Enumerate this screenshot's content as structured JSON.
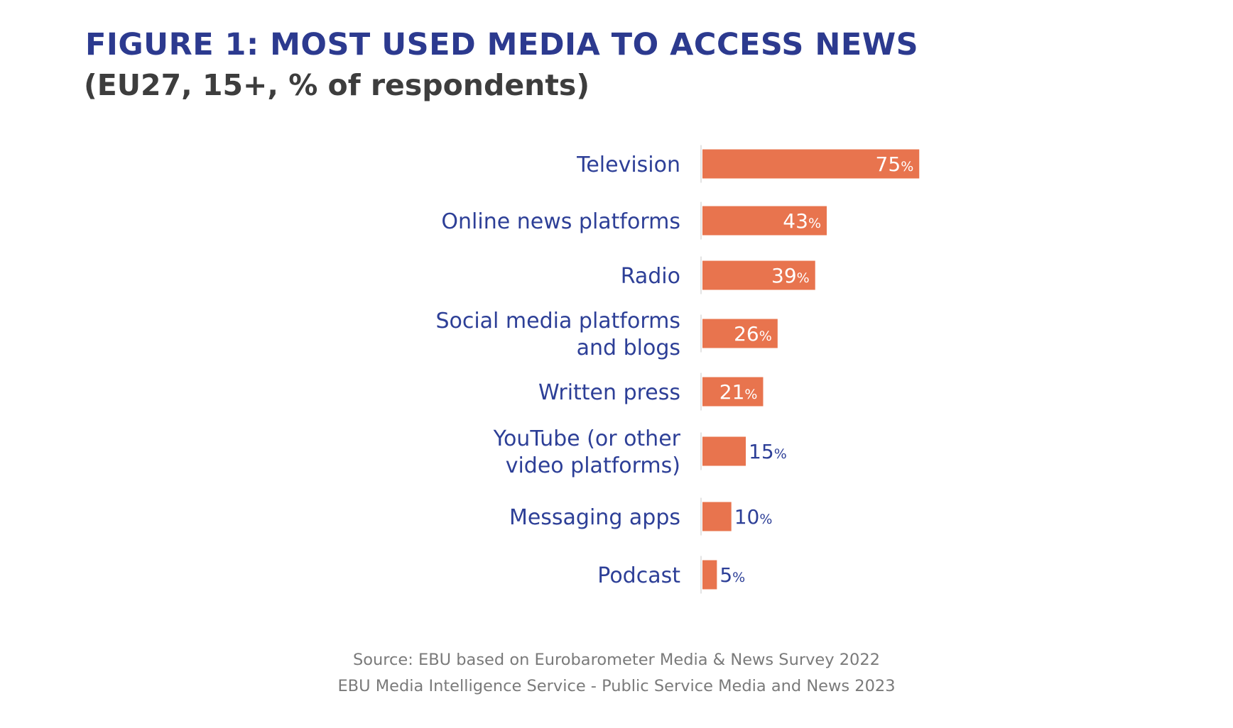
{
  "title": "FIGURE 1: MOST USED MEDIA TO ACCESS NEWS",
  "subtitle": "(EU27, 15+, % of respondents)",
  "source_line_1": "Source: EBU based on Eurobarometer Media & News Survey 2022",
  "source_line_2": "EBU Media Intelligence Service  -  Public Service Media and News 2023",
  "colors": {
    "bar": "#e8744e",
    "title": "#2c3a8f",
    "category_label": "#2d3f97",
    "value_label_inside": "#ffffff",
    "value_label_outside": "#2d3f97"
  },
  "chart_data": {
    "type": "bar",
    "orientation": "horizontal",
    "categories": [
      [
        "Television"
      ],
      [
        "Online news platforms"
      ],
      [
        "Radio"
      ],
      [
        "Social media platforms",
        "and blogs"
      ],
      [
        "Written press"
      ],
      [
        "YouTube (or other",
        "video platforms)"
      ],
      [
        "Messaging apps"
      ],
      [
        "Podcast"
      ]
    ],
    "values": [
      75,
      43,
      39,
      26,
      21,
      15,
      10,
      5
    ],
    "value_suffix": "%",
    "xlim": [
      0,
      100
    ],
    "grid": false,
    "legend": "none"
  }
}
